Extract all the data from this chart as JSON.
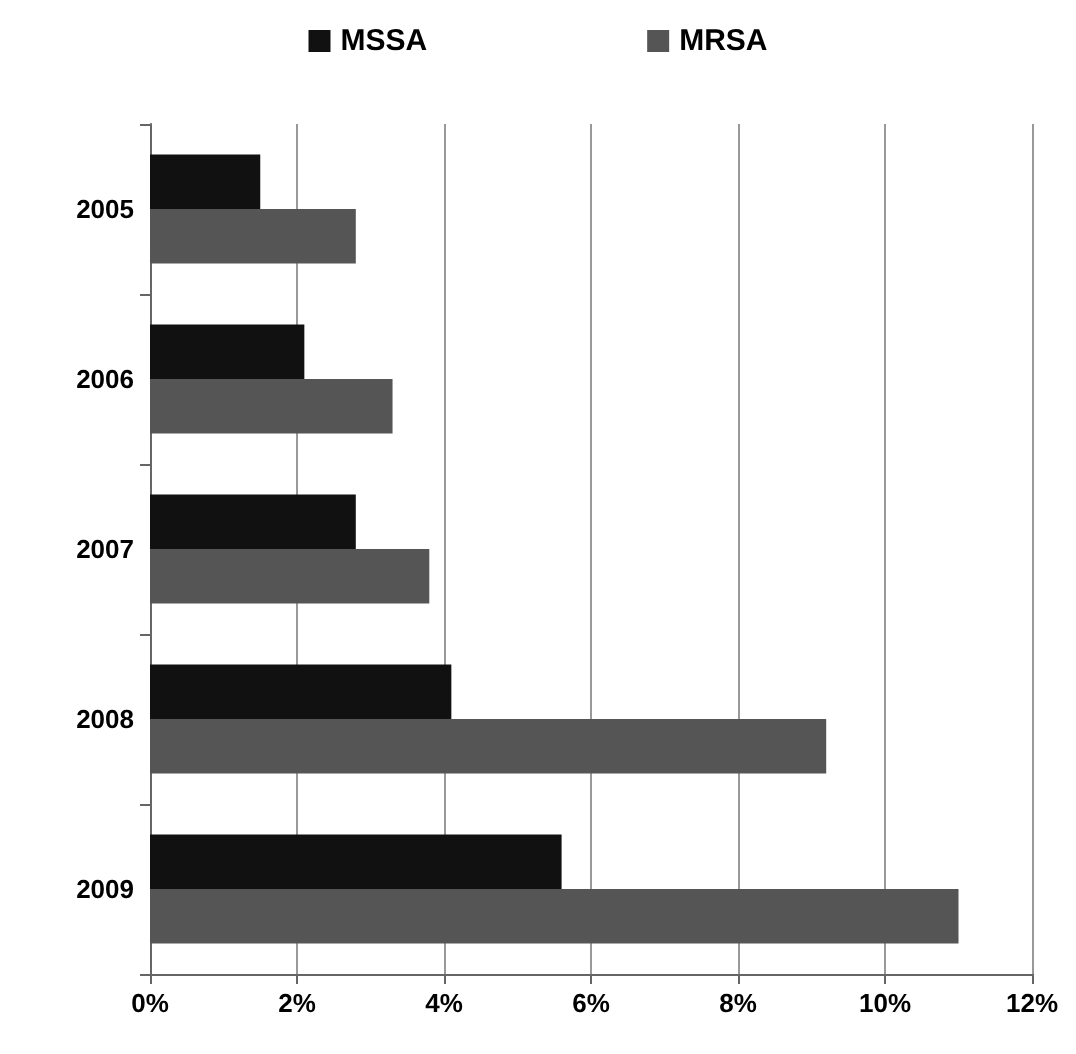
{
  "chart_data": {
    "type": "bar",
    "orientation": "horizontal",
    "categories": [
      "2005",
      "2006",
      "2007",
      "2008",
      "2009"
    ],
    "series": [
      {
        "name": "MSSA",
        "color": "#111111",
        "values": [
          1.5,
          2.1,
          2.8,
          4.1,
          5.6
        ]
      },
      {
        "name": "MRSA",
        "color": "#555555",
        "values": [
          2.8,
          3.3,
          3.8,
          9.2,
          11.0
        ]
      }
    ],
    "xlim": [
      0,
      12
    ],
    "xticks": [
      {
        "value": 0,
        "label": "0%"
      },
      {
        "value": 2,
        "label": "2%"
      },
      {
        "value": 4,
        "label": "4%"
      },
      {
        "value": 6,
        "label": "6%"
      },
      {
        "value": 8,
        "label": "8%"
      },
      {
        "value": 10,
        "label": "10%"
      },
      {
        "value": 12,
        "label": "12%"
      }
    ],
    "grid": "x",
    "legend": "top"
  }
}
